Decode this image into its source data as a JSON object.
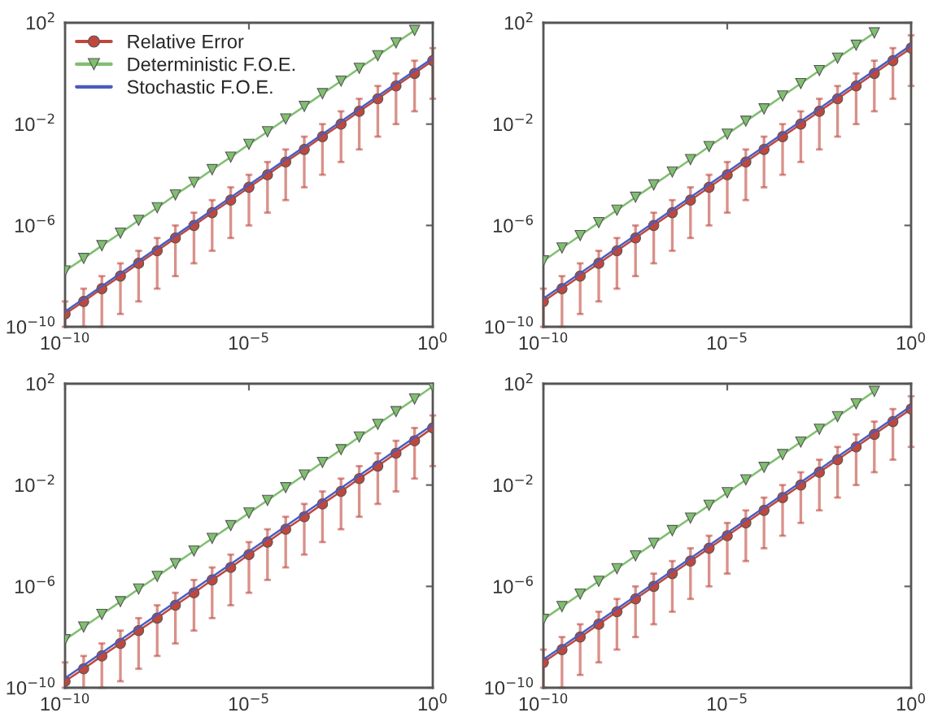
{
  "chart_data": [
    {
      "type": "line",
      "log": "xy",
      "xlim": [
        1e-10,
        1
      ],
      "ylim": [
        1e-10,
        100
      ],
      "grid": false,
      "legend": "top left",
      "xticks": [
        {
          "value": 1e-10,
          "label": "10$^{−10}$"
        },
        {
          "value": 1e-05,
          "label": "10$^{−5}$"
        },
        {
          "value": 1,
          "label": "10$^{0}$"
        }
      ],
      "yticks": [
        {
          "value": 1e-10,
          "label": "10$^{−10}$"
        },
        {
          "value": 1e-06,
          "label": "10$^{−6}$"
        },
        {
          "value": 0.01,
          "label": "10$^{−2}$"
        },
        {
          "value": 100,
          "label": "10$^{2}$"
        }
      ],
      "x": [
        1e-10,
        3.2e-10,
        1e-09,
        3.2e-09,
        1e-08,
        3.2e-08,
        1e-07,
        3.2e-07,
        1e-06,
        3.2e-06,
        1e-05,
        3.2e-05,
        0.0001,
        0.00032,
        0.001,
        0.0032,
        0.01,
        0.032,
        0.1,
        0.32,
        1
      ],
      "series": [
        {
          "name": "Relative Error",
          "color": "#c0473c",
          "marker": "circle",
          "values": [
            3.2e-10,
            1e-09,
            3.2e-09,
            1e-08,
            3.2e-08,
            1e-07,
            3.2e-07,
            1e-06,
            3.2e-06,
            1e-05,
            3.2e-05,
            0.0001,
            0.00032,
            0.001,
            0.0032,
            0.01,
            0.032,
            0.1,
            0.32,
            1,
            3.2
          ],
          "errors": [
            [
              1e-10,
              1e-09
            ],
            [
              1e-10,
              3.2e-09
            ],
            [
              1e-10,
              1e-08
            ],
            [
              3.2e-10,
              3.2e-08
            ],
            [
              1e-09,
              1e-07
            ],
            [
              3.2e-09,
              3.2e-07
            ],
            [
              1e-08,
              1e-06
            ],
            [
              3.2e-08,
              3.2e-06
            ],
            [
              1e-07,
              1e-05
            ],
            [
              3.2e-07,
              3.2e-05
            ],
            [
              1e-06,
              0.0001
            ],
            [
              3.2e-06,
              0.00032
            ],
            [
              1e-05,
              0.001
            ],
            [
              3.2e-05,
              0.0032
            ],
            [
              0.0001,
              0.01
            ],
            [
              0.00032,
              0.032
            ],
            [
              0.001,
              0.1
            ],
            [
              0.0032,
              0.32
            ],
            [
              0.01,
              1
            ],
            [
              0.032,
              3.2
            ],
            [
              0.1,
              10
            ]
          ]
        },
        {
          "name": "Deterministic F.O.E.",
          "color": "#7fbf6f",
          "marker": "triangle",
          "x": [
            1e-10,
            3.2e-10,
            1e-09,
            3.2e-09,
            1e-08,
            3.2e-08,
            1e-07,
            3.2e-07,
            1e-06,
            3.2e-06,
            1e-05,
            3.2e-05,
            0.0001,
            0.00032,
            0.001,
            0.0032,
            0.01,
            0.032,
            0.1,
            0.32
          ],
          "values": [
            1.6e-08,
            5e-08,
            1.6e-07,
            5e-07,
            1.6e-06,
            5e-06,
            1.6e-05,
            5e-05,
            0.00016,
            0.0005,
            0.0016,
            0.005,
            0.016,
            0.05,
            0.16,
            0.5,
            1.6,
            5,
            16,
            50
          ]
        },
        {
          "name": "Stochastic F.O.E.",
          "color": "#4a5cc0",
          "marker": "none",
          "x": [
            1e-10,
            1
          ],
          "values": [
            4e-10,
            4
          ]
        }
      ]
    },
    {
      "type": "line",
      "log": "xy",
      "xlim": [
        1e-10,
        1
      ],
      "ylim": [
        1e-10,
        100
      ],
      "grid": false,
      "xticks": [
        {
          "value": 1e-10,
          "label": "10$^{−10}$"
        },
        {
          "value": 1e-05,
          "label": "10$^{−5}$"
        },
        {
          "value": 1,
          "label": "10$^{0}$"
        }
      ],
      "yticks": [
        {
          "value": 1e-10,
          "label": "10$^{−10}$"
        },
        {
          "value": 1e-06,
          "label": "10$^{−6}$"
        },
        {
          "value": 0.01,
          "label": "10$^{−2}$"
        },
        {
          "value": 100,
          "label": "10$^{2}$"
        }
      ],
      "x": [
        1e-10,
        3.2e-10,
        1e-09,
        3.2e-09,
        1e-08,
        3.2e-08,
        1e-07,
        3.2e-07,
        1e-06,
        3.2e-06,
        1e-05,
        3.2e-05,
        0.0001,
        0.00032,
        0.001,
        0.0032,
        0.01,
        0.032,
        0.1,
        0.32,
        1
      ],
      "series": [
        {
          "color": "#c0473c",
          "marker": "circle",
          "values": [
            1e-09,
            3.2e-09,
            1e-08,
            3.2e-08,
            1e-07,
            3.2e-07,
            1e-06,
            3.2e-06,
            1e-05,
            3.2e-05,
            0.0001,
            0.00032,
            0.001,
            0.0032,
            0.01,
            0.032,
            0.1,
            0.32,
            1,
            3.2,
            10
          ],
          "errors": [
            [
              1e-10,
              3.2e-09
            ],
            [
              1e-10,
              1e-08
            ],
            [
              3.2e-10,
              3.2e-08
            ],
            [
              1e-09,
              1e-07
            ],
            [
              3.2e-09,
              3.2e-07
            ],
            [
              1e-08,
              1e-06
            ],
            [
              3.2e-08,
              3.2e-06
            ],
            [
              1e-07,
              1e-05
            ],
            [
              3.2e-07,
              3.2e-05
            ],
            [
              1e-06,
              0.0001
            ],
            [
              3.2e-06,
              0.00032
            ],
            [
              1e-05,
              0.001
            ],
            [
              3.2e-05,
              0.0032
            ],
            [
              0.0001,
              0.01
            ],
            [
              0.00032,
              0.032
            ],
            [
              0.001,
              0.1
            ],
            [
              0.0032,
              0.32
            ],
            [
              0.01,
              1
            ],
            [
              0.032,
              3.2
            ],
            [
              0.1,
              10
            ],
            [
              0.32,
              32
            ]
          ]
        },
        {
          "color": "#7fbf6f",
          "marker": "triangle",
          "x": [
            1e-10,
            3.2e-10,
            1e-09,
            3.2e-09,
            1e-08,
            3.2e-08,
            1e-07,
            3.2e-07,
            1e-06,
            3.2e-06,
            1e-05,
            3.2e-05,
            0.0001,
            0.00032,
            0.001,
            0.0032,
            0.01,
            0.032,
            0.1
          ],
          "values": [
            4e-08,
            1.3e-07,
            4e-07,
            1.3e-06,
            4e-06,
            1.3e-05,
            4e-05,
            0.00013,
            0.0004,
            0.0013,
            0.004,
            0.013,
            0.04,
            0.13,
            0.4,
            1.3,
            4,
            13,
            40
          ]
        },
        {
          "color": "#4a5cc0",
          "marker": "none",
          "x": [
            1e-10,
            1
          ],
          "values": [
            1.3e-09,
            13
          ]
        }
      ]
    },
    {
      "type": "line",
      "log": "xy",
      "xlim": [
        1e-10,
        1
      ],
      "ylim": [
        1e-10,
        100
      ],
      "grid": false,
      "xticks": [
        {
          "value": 1e-10,
          "label": "10$^{−10}$"
        },
        {
          "value": 1e-05,
          "label": "10$^{−5}$"
        },
        {
          "value": 1,
          "label": "10$^{0}$"
        }
      ],
      "yticks": [
        {
          "value": 1e-10,
          "label": "10$^{−10}$"
        },
        {
          "value": 1e-06,
          "label": "10$^{−6}$"
        },
        {
          "value": 0.01,
          "label": "10$^{−2}$"
        },
        {
          "value": 100,
          "label": "10$^{2}$"
        }
      ],
      "x": [
        1e-10,
        3.2e-10,
        1e-09,
        3.2e-09,
        1e-08,
        3.2e-08,
        1e-07,
        3.2e-07,
        1e-06,
        3.2e-06,
        1e-05,
        3.2e-05,
        0.0001,
        0.00032,
        0.001,
        0.0032,
        0.01,
        0.032,
        0.1,
        0.32,
        1
      ],
      "series": [
        {
          "color": "#c0473c",
          "marker": "circle",
          "values": [
            1.8e-10,
            5.6e-10,
            1.8e-09,
            5.6e-09,
            1.8e-08,
            5.6e-08,
            1.8e-07,
            5.6e-07,
            1.8e-06,
            5.6e-06,
            1.8e-05,
            5.6e-05,
            0.00018,
            0.00056,
            0.0018,
            0.0056,
            0.018,
            0.056,
            0.18,
            0.56,
            1.8
          ],
          "errors": [
            [
              1e-10,
              1e-09
            ],
            [
              1e-10,
              1.8e-09
            ],
            [
              1e-10,
              5.6e-09
            ],
            [
              1.8e-10,
              1.8e-08
            ],
            [
              5.6e-10,
              5.6e-08
            ],
            [
              1.8e-09,
              1.8e-07
            ],
            [
              5.6e-09,
              5.6e-07
            ],
            [
              1.8e-08,
              1.8e-06
            ],
            [
              5.6e-08,
              5.6e-06
            ],
            [
              1.8e-07,
              1.8e-05
            ],
            [
              5.6e-07,
              5.6e-05
            ],
            [
              1.8e-06,
              0.00018
            ],
            [
              5.6e-06,
              0.00056
            ],
            [
              1.8e-05,
              0.0018
            ],
            [
              5.6e-05,
              0.0056
            ],
            [
              0.00018,
              0.018
            ],
            [
              0.00056,
              0.056
            ],
            [
              0.0018,
              0.18
            ],
            [
              0.0056,
              0.56
            ],
            [
              0.018,
              1.8
            ],
            [
              0.056,
              5.6
            ]
          ]
        },
        {
          "color": "#7fbf6f",
          "marker": "triangle",
          "values": [
            7.9e-09,
            2.5e-08,
            7.9e-08,
            2.5e-07,
            7.9e-07,
            2.5e-06,
            7.9e-06,
            2.5e-05,
            7.9e-05,
            0.00025,
            0.00079,
            0.0025,
            0.0079,
            0.025,
            0.079,
            0.25,
            0.79,
            2.5,
            7.9,
            25,
            79
          ]
        },
        {
          "color": "#4a5cc0",
          "marker": "none",
          "x": [
            1e-10,
            1
          ],
          "values": [
            2.4e-10,
            2.4
          ]
        }
      ]
    },
    {
      "type": "line",
      "log": "xy",
      "xlim": [
        1e-10,
        1
      ],
      "ylim": [
        1e-10,
        100
      ],
      "grid": false,
      "xticks": [
        {
          "value": 1e-10,
          "label": "10$^{−10}$"
        },
        {
          "value": 1e-05,
          "label": "10$^{−5}$"
        },
        {
          "value": 1,
          "label": "10$^{0}$"
        }
      ],
      "yticks": [
        {
          "value": 1e-10,
          "label": "10$^{−10}$"
        },
        {
          "value": 1e-06,
          "label": "10$^{−6}$"
        },
        {
          "value": 0.01,
          "label": "10$^{−2}$"
        },
        {
          "value": 100,
          "label": "10$^{2}$"
        }
      ],
      "x": [
        1e-10,
        3.2e-10,
        1e-09,
        3.2e-09,
        1e-08,
        3.2e-08,
        1e-07,
        3.2e-07,
        1e-06,
        3.2e-06,
        1e-05,
        3.2e-05,
        0.0001,
        0.00032,
        0.001,
        0.0032,
        0.01,
        0.032,
        0.1,
        0.32,
        1
      ],
      "series": [
        {
          "color": "#c0473c",
          "marker": "circle",
          "values": [
            1e-09,
            3.2e-09,
            1e-08,
            3.2e-08,
            1e-07,
            3.2e-07,
            1e-06,
            3.2e-06,
            1e-05,
            3.2e-05,
            0.0001,
            0.00032,
            0.001,
            0.0032,
            0.01,
            0.032,
            0.1,
            0.32,
            1,
            3.2,
            10
          ],
          "errors": [
            [
              1e-10,
              3.2e-09
            ],
            [
              1e-10,
              1e-08
            ],
            [
              3.2e-10,
              3.2e-08
            ],
            [
              1e-09,
              1e-07
            ],
            [
              3.2e-09,
              3.2e-07
            ],
            [
              1e-08,
              1e-06
            ],
            [
              3.2e-08,
              3.2e-06
            ],
            [
              1e-07,
              1e-05
            ],
            [
              3.2e-07,
              3.2e-05
            ],
            [
              1e-06,
              0.0001
            ],
            [
              3.2e-06,
              0.00032
            ],
            [
              1e-05,
              0.001
            ],
            [
              3.2e-05,
              0.0032
            ],
            [
              0.0001,
              0.01
            ],
            [
              0.00032,
              0.032
            ],
            [
              0.001,
              0.1
            ],
            [
              0.0032,
              0.32
            ],
            [
              0.01,
              1
            ],
            [
              0.032,
              3.2
            ],
            [
              0.1,
              10
            ],
            [
              0.32,
              32
            ]
          ]
        },
        {
          "color": "#7fbf6f",
          "marker": "triangle",
          "x": [
            1e-10,
            3.2e-10,
            1e-09,
            3.2e-09,
            1e-08,
            3.2e-08,
            1e-07,
            3.2e-07,
            1e-06,
            3.2e-06,
            1e-05,
            3.2e-05,
            0.0001,
            0.00032,
            0.001,
            0.0032,
            0.01,
            0.032,
            0.1
          ],
          "values": [
            5e-08,
            1.6e-07,
            5e-07,
            1.6e-06,
            5e-06,
            1.6e-05,
            5e-05,
            0.00016,
            0.0005,
            0.0016,
            0.005,
            0.016,
            0.05,
            0.16,
            0.5,
            1.6,
            5,
            16,
            50
          ]
        },
        {
          "color": "#4a5cc0",
          "marker": "none",
          "x": [
            1e-10,
            1
          ],
          "values": [
            1.3e-09,
            13
          ]
        }
      ]
    }
  ]
}
